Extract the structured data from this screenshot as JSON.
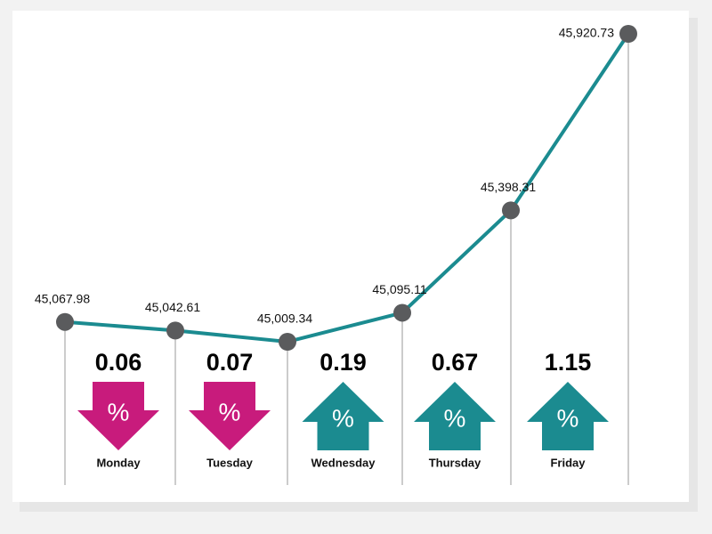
{
  "chart_data": {
    "type": "line",
    "x": [
      null,
      "Monday",
      "Tuesday",
      "Wednesday",
      "Thursday",
      "Friday"
    ],
    "values": [
      45067.98,
      45042.61,
      45009.34,
      45095.11,
      45398.31,
      45920.73
    ],
    "value_labels": [
      "45,067.98",
      "45,042.61",
      "45,009.34",
      "45,095.11",
      "45,398.31",
      "45,920.73"
    ],
    "color": "#1b8b90",
    "point_color": "#5a5b5d",
    "changes": [
      0.06,
      0.07,
      0.19,
      0.67,
      1.15
    ],
    "directions": [
      "down",
      "down",
      "up",
      "up",
      "up"
    ],
    "direction_colors": {
      "down": "#c81b7c",
      "up": "#1b8b90"
    },
    "arrow_symbol": "%"
  }
}
